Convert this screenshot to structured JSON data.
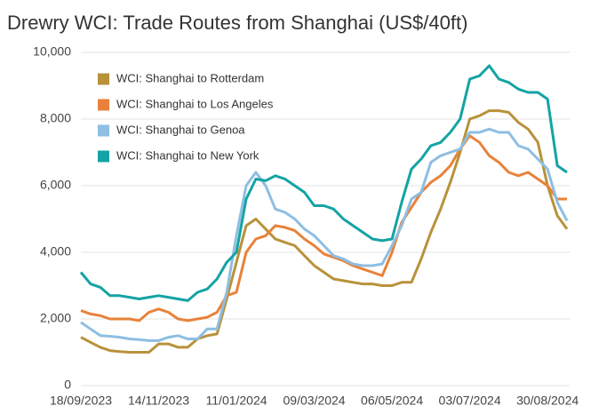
{
  "chart_data": {
    "type": "line",
    "title": "Drewry WCI: Trade Routes from Shanghai (US$/40ft)",
    "categories": [
      "18/09/2023",
      null,
      null,
      null,
      null,
      null,
      null,
      null,
      "14/11/2023",
      null,
      null,
      null,
      null,
      null,
      null,
      null,
      "11/01/2024",
      null,
      null,
      null,
      null,
      null,
      null,
      null,
      "09/03/2024",
      null,
      null,
      null,
      null,
      null,
      null,
      null,
      "06/05/2024",
      null,
      null,
      null,
      null,
      null,
      null,
      null,
      "03/07/2024",
      null,
      null,
      null,
      null,
      null,
      null,
      null,
      "30/08/2024",
      null,
      null
    ],
    "series": [
      {
        "name": "WCI: Shanghai to Rotterdam",
        "color": "#b8923b",
        "values": [
          1450,
          1300,
          1150,
          1050,
          1020,
          1000,
          1000,
          1000,
          1250,
          1250,
          1150,
          1150,
          1400,
          1500,
          1550,
          2600,
          3700,
          4800,
          5000,
          4700,
          4400,
          4300,
          4200,
          3900,
          3600,
          3400,
          3200,
          3150,
          3100,
          3050,
          3050,
          3000,
          3000,
          3100,
          3100,
          3800,
          4600,
          5300,
          6100,
          7000,
          8000,
          8100,
          8250,
          8250,
          8200,
          7900,
          7700,
          7300,
          6000,
          5100,
          4700
        ]
      },
      {
        "name": "WCI: Shanghai to Los Angeles",
        "color": "#e8823a",
        "values": [
          2250,
          2150,
          2100,
          2000,
          2000,
          2000,
          1950,
          2200,
          2300,
          2200,
          2000,
          1950,
          2000,
          2050,
          2200,
          2700,
          2800,
          4000,
          4400,
          4500,
          4800,
          4750,
          4650,
          4400,
          4200,
          3950,
          3850,
          3750,
          3600,
          3500,
          3400,
          3300,
          4000,
          4900,
          5350,
          5800,
          6100,
          6300,
          6600,
          7100,
          7500,
          7300,
          6900,
          6700,
          6400,
          6300,
          6400,
          6200,
          6000,
          5600,
          5600
        ]
      },
      {
        "name": "WCI: Shanghai to Genoa",
        "color": "#8ebee2",
        "values": [
          1900,
          1700,
          1500,
          1480,
          1450,
          1400,
          1380,
          1350,
          1350,
          1450,
          1500,
          1400,
          1400,
          1700,
          1700,
          2800,
          4500,
          6000,
          6400,
          6000,
          5300,
          5200,
          5000,
          4700,
          4500,
          4200,
          3900,
          3800,
          3650,
          3600,
          3600,
          3650,
          4200,
          4800,
          5600,
          5800,
          6700,
          6900,
          7000,
          7100,
          7600,
          7600,
          7700,
          7600,
          7600,
          7200,
          7100,
          6800,
          6500,
          5500,
          4950
        ]
      },
      {
        "name": "WCI: Shanghai to New York",
        "color": "#14a3a4",
        "values": [
          3400,
          3050,
          2950,
          2700,
          2700,
          2650,
          2600,
          2650,
          2700,
          2650,
          2600,
          2550,
          2800,
          2900,
          3200,
          3700,
          4000,
          5600,
          6200,
          6150,
          6300,
          6200,
          6000,
          5800,
          5400,
          5400,
          5300,
          5000,
          4800,
          4600,
          4400,
          4350,
          4400,
          5500,
          6500,
          6800,
          7200,
          7300,
          7600,
          8000,
          9200,
          9300,
          9600,
          9200,
          9100,
          8900,
          8800,
          8800,
          8600,
          6600,
          6400
        ]
      }
    ],
    "ylim": [
      0,
      10000
    ],
    "yticks": [
      0,
      {
        "value": 2000,
        "label": "2,000"
      },
      {
        "value": 4000,
        "label": "4,000"
      },
      {
        "value": 6000,
        "label": "6,000"
      },
      {
        "value": 8000,
        "label": "8,000"
      },
      {
        "value": 10000,
        "label": "10,000"
      }
    ],
    "grid": true,
    "legend": "upper left"
  }
}
